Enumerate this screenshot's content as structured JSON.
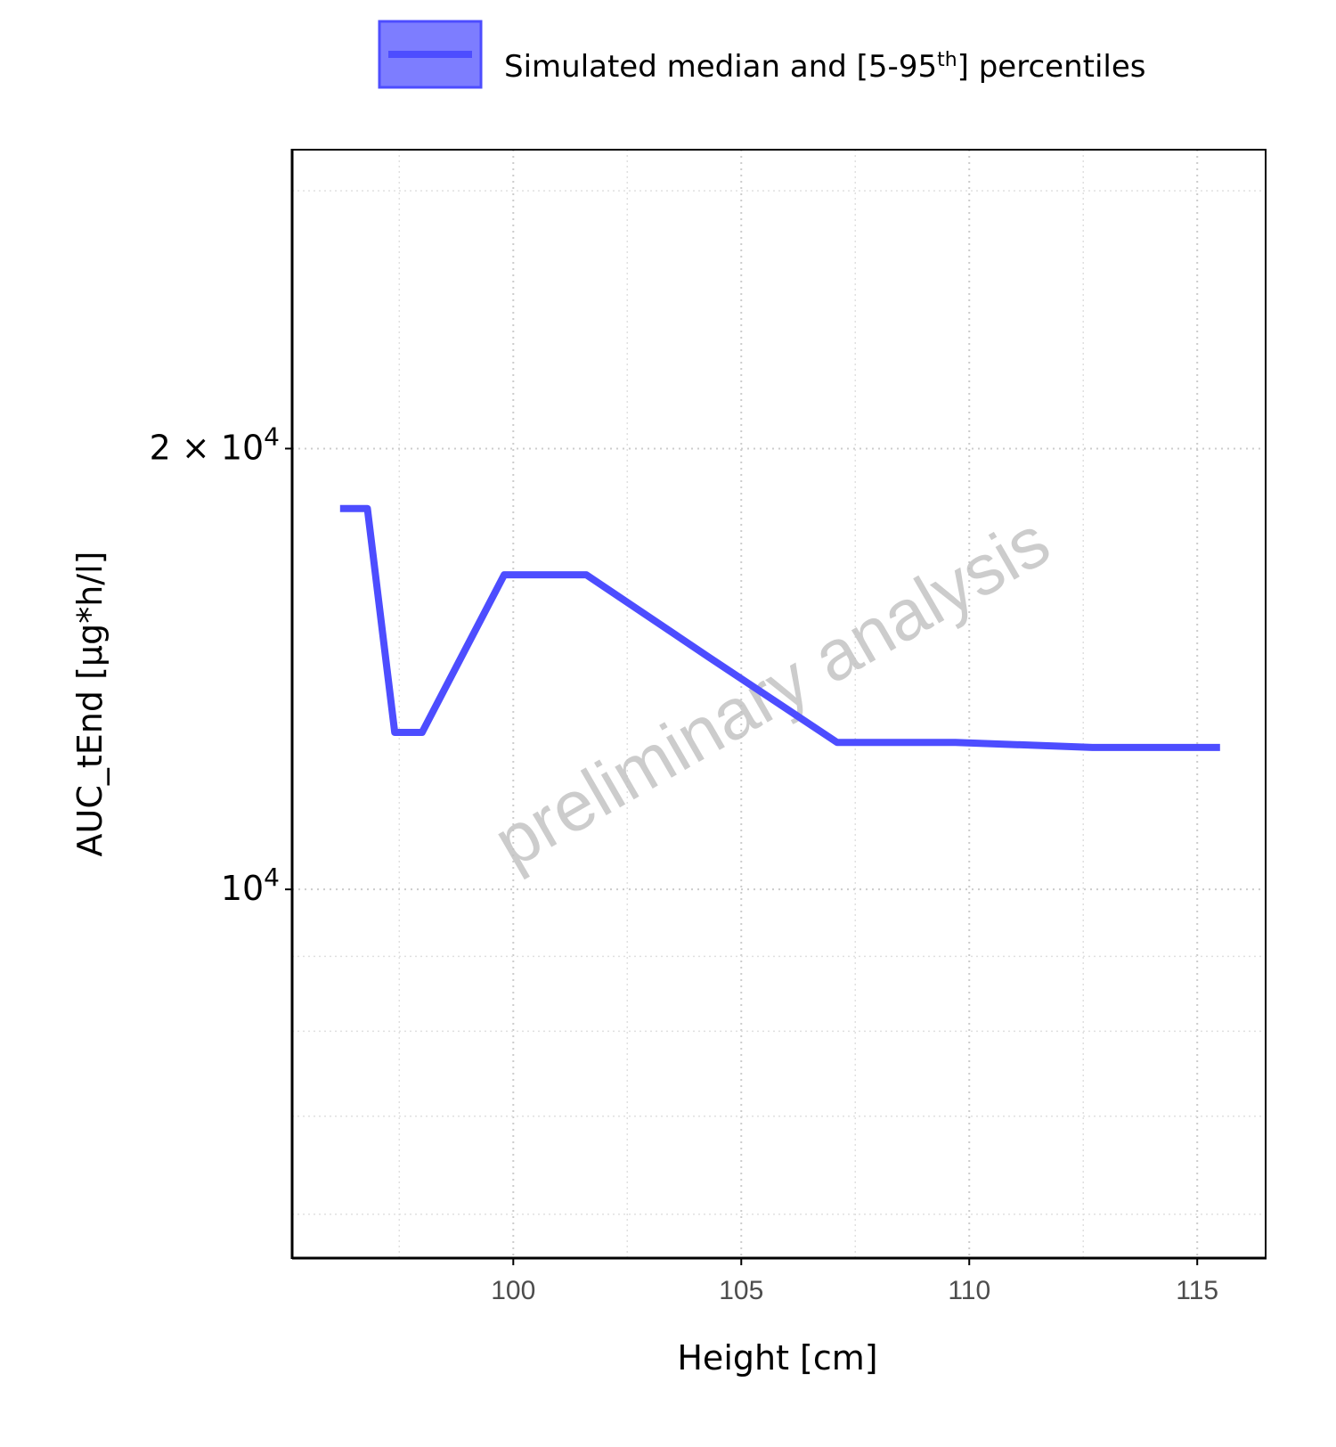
{
  "chart_data": {
    "type": "line",
    "legend": {
      "placement": "top",
      "label_main": "Simulated median and [5-95",
      "label_sup": "th",
      "label_end": "] percentiles",
      "fill_color": "#6666ff",
      "line_color": "#4d4dff"
    },
    "xlabel": "Height [cm]",
    "ylabel": "AUC_tEnd [µg*h/l]",
    "watermark": "preliminary analysis",
    "x_ticks": [
      100,
      105,
      110,
      115
    ],
    "x_tick_labels": [
      "100",
      "105",
      "110",
      "115"
    ],
    "y_ticks": [
      {
        "value": 20000,
        "label_mantissa": "2",
        "label_times": "×",
        "label_base": "10",
        "label_exp": "4"
      },
      {
        "value": 10000,
        "label_mantissa": "",
        "label_times": "",
        "label_base": "10",
        "label_exp": "4"
      }
    ],
    "y_scale": "log",
    "xlim": [
      95.15,
      116.5
    ],
    "ylim": [
      5600,
      32000
    ],
    "grid": true,
    "series": [
      {
        "line_color": "#4d4dff",
        "x": [
          96.2,
          96.8,
          97.4,
          98.0,
          99.8,
          101.6,
          104.3,
          107.1,
          109.7,
          112.7,
          115.5
        ],
        "y": [
          18200,
          18200,
          12800,
          12800,
          16400,
          16400,
          14400,
          12600,
          12600,
          12500,
          12500
        ]
      }
    ],
    "colors": {
      "series": "#4d4dff",
      "grid": "#cccccc",
      "axis": "#000000"
    }
  }
}
